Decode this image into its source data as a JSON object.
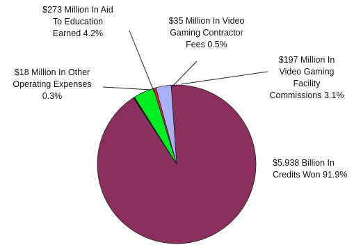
{
  "chart_data": {
    "type": "pie",
    "title": "",
    "slices": [
      {
        "label": "$5.938 Billion In Credits Won 91.9%",
        "value": 91.9,
        "color": "#8b2f5f"
      },
      {
        "label": "$18 Million In Other Operating Expenses 0.3%",
        "value": 0.3,
        "color": "#1a1a1a"
      },
      {
        "label": "$273 Million In Aid To Education Earned 4.2%",
        "value": 4.2,
        "color": "#00ee22"
      },
      {
        "label": "$35 Million In Video Gaming Contractor Fees 0.5%",
        "value": 0.5,
        "color": "#ee2211"
      },
      {
        "label": "$197 Million In Video Gaming Facility Commissions 3.1%",
        "value": 3.1,
        "color": "#aab0f5"
      }
    ]
  },
  "labels": {
    "aid": {
      "line1": "$273 Million In Aid",
      "line2": "To Education",
      "line3": "Earned 4.2%"
    },
    "contractor": {
      "line1": "$35 Million In Video",
      "line2": "Gaming Contractor",
      "line3": "Fees 0.5%"
    },
    "commissions": {
      "line1": "$197 Million In",
      "line2": "Video Gaming",
      "line3": "Facility",
      "line4": "Commissions 3.1%"
    },
    "other": {
      "line1": "$18 Million In Other",
      "line2": "Operating Expenses",
      "line3": "0.3%"
    },
    "credits": {
      "line1": "$5.938 Billion In",
      "line2": "Credits Won 91.9%"
    }
  }
}
